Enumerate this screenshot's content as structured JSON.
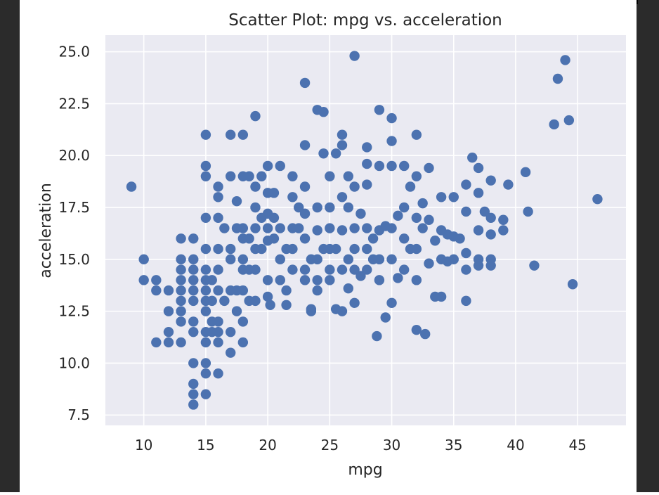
{
  "chart_data": {
    "type": "scatter",
    "title": "Scatter Plot: mpg vs. acceleration",
    "xlabel": "mpg",
    "ylabel": "acceleration",
    "xlim": [
      6.9,
      48.9
    ],
    "ylim": [
      7.0,
      25.8
    ],
    "xticks": [
      "10",
      "15",
      "20",
      "25",
      "30",
      "35",
      "40",
      "45"
    ],
    "yticks": [
      "7.5",
      "10.0",
      "12.5",
      "15.0",
      "17.5",
      "20.0",
      "22.5",
      "25.0"
    ],
    "grid": true,
    "legend": "none",
    "marker_color": "#4c72b0",
    "plot_background": "#eaeaf2",
    "points": [
      [
        9,
        18.5
      ],
      [
        10,
        15
      ],
      [
        10,
        14
      ],
      [
        11,
        14
      ],
      [
        11,
        13.5
      ],
      [
        11,
        11
      ],
      [
        12,
        13.5
      ],
      [
        12,
        12.5
      ],
      [
        12,
        11.5
      ],
      [
        12,
        11
      ],
      [
        13,
        16
      ],
      [
        13,
        15
      ],
      [
        13,
        14.5
      ],
      [
        13,
        14
      ],
      [
        13,
        13.5
      ],
      [
        13,
        13
      ],
      [
        13,
        12.5
      ],
      [
        13,
        12
      ],
      [
        13,
        11
      ],
      [
        14,
        16
      ],
      [
        14,
        15
      ],
      [
        14,
        14.5
      ],
      [
        14,
        14
      ],
      [
        14,
        13.5
      ],
      [
        14,
        13
      ],
      [
        14,
        12
      ],
      [
        14,
        11.5
      ],
      [
        14,
        10
      ],
      [
        14,
        9
      ],
      [
        14,
        8.5
      ],
      [
        14,
        8
      ],
      [
        15,
        21
      ],
      [
        15,
        19.5
      ],
      [
        15,
        19
      ],
      [
        15,
        17
      ],
      [
        15,
        15.5
      ],
      [
        15,
        14.5
      ],
      [
        15,
        14
      ],
      [
        15,
        13.5
      ],
      [
        15,
        13
      ],
      [
        15,
        12.5
      ],
      [
        15,
        11.5
      ],
      [
        15,
        11
      ],
      [
        15,
        10
      ],
      [
        15,
        9.5
      ],
      [
        15,
        8.5
      ],
      [
        15.5,
        14
      ],
      [
        15.5,
        13
      ],
      [
        15.5,
        12
      ],
      [
        15.5,
        11.5
      ],
      [
        16,
        18.5
      ],
      [
        16,
        18
      ],
      [
        16,
        17
      ],
      [
        16,
        15.5
      ],
      [
        16,
        14.5
      ],
      [
        16,
        13.5
      ],
      [
        16,
        12
      ],
      [
        16,
        11.5
      ],
      [
        16,
        11
      ],
      [
        16,
        9.5
      ],
      [
        16.5,
        16.5
      ],
      [
        16.5,
        13
      ],
      [
        17,
        21
      ],
      [
        17,
        19
      ],
      [
        17,
        15.5
      ],
      [
        17,
        15
      ],
      [
        17,
        13.5
      ],
      [
        17,
        11.5
      ],
      [
        17,
        10.5
      ],
      [
        17.5,
        17.8
      ],
      [
        17.5,
        16.5
      ],
      [
        17.5,
        13.5
      ],
      [
        17.5,
        12.5
      ],
      [
        18,
        21
      ],
      [
        18,
        19
      ],
      [
        18,
        16.5
      ],
      [
        18,
        16
      ],
      [
        18,
        15
      ],
      [
        18,
        14.5
      ],
      [
        18,
        13.5
      ],
      [
        18,
        12
      ],
      [
        18,
        11
      ],
      [
        18.5,
        19
      ],
      [
        18.5,
        16
      ],
      [
        18.5,
        14.5
      ],
      [
        18.5,
        13
      ],
      [
        19,
        21.9
      ],
      [
        19,
        18.5
      ],
      [
        19,
        17.5
      ],
      [
        19,
        16.5
      ],
      [
        19,
        15.5
      ],
      [
        19,
        14.5
      ],
      [
        19,
        13
      ],
      [
        19.5,
        19
      ],
      [
        19.5,
        17
      ],
      [
        19.5,
        15.5
      ],
      [
        20,
        19.5
      ],
      [
        20,
        18.2
      ],
      [
        20,
        17.2
      ],
      [
        20,
        16.5
      ],
      [
        20,
        15.9
      ],
      [
        20,
        14
      ],
      [
        20,
        13.2
      ],
      [
        20.2,
        12.8
      ],
      [
        20.5,
        18.2
      ],
      [
        20.5,
        17
      ],
      [
        20.5,
        16
      ],
      [
        21,
        19.5
      ],
      [
        21,
        16.5
      ],
      [
        21,
        15
      ],
      [
        21,
        14
      ],
      [
        21.5,
        15.5
      ],
      [
        21.5,
        13.5
      ],
      [
        21.5,
        12.8
      ],
      [
        22,
        19
      ],
      [
        22,
        18
      ],
      [
        22,
        16.5
      ],
      [
        22,
        15.5
      ],
      [
        22,
        14.5
      ],
      [
        22.5,
        17.5
      ],
      [
        22.5,
        16.5
      ],
      [
        23,
        23.5
      ],
      [
        23,
        20.5
      ],
      [
        23,
        18.5
      ],
      [
        23,
        17.2
      ],
      [
        23,
        16
      ],
      [
        23,
        14.5
      ],
      [
        23,
        14
      ],
      [
        23.5,
        15
      ],
      [
        23.5,
        12.6
      ],
      [
        23.5,
        12.5
      ],
      [
        24,
        22.2
      ],
      [
        24,
        17.5
      ],
      [
        24,
        16.4
      ],
      [
        24,
        15
      ],
      [
        24,
        14
      ],
      [
        24,
        13.5
      ],
      [
        24.5,
        22.1
      ],
      [
        24.5,
        20.1
      ],
      [
        24.5,
        15.5
      ],
      [
        25,
        19
      ],
      [
        25,
        17.5
      ],
      [
        25,
        16.5
      ],
      [
        25,
        15.5
      ],
      [
        25,
        14.5
      ],
      [
        25,
        14
      ],
      [
        25.5,
        20.1
      ],
      [
        25.5,
        15.5
      ],
      [
        25.5,
        12.6
      ],
      [
        26,
        21
      ],
      [
        26,
        20.5
      ],
      [
        26,
        18
      ],
      [
        26,
        16.4
      ],
      [
        26,
        14.5
      ],
      [
        26,
        12.5
      ],
      [
        26.5,
        19
      ],
      [
        26.5,
        17.5
      ],
      [
        26.5,
        15
      ],
      [
        26.5,
        13.6
      ],
      [
        27,
        24.8
      ],
      [
        27,
        18.5
      ],
      [
        27,
        16.5
      ],
      [
        27,
        15.5
      ],
      [
        27,
        14.5
      ],
      [
        27,
        12.9
      ],
      [
        27.5,
        17.2
      ],
      [
        27.5,
        14.2
      ],
      [
        28,
        20.4
      ],
      [
        28,
        19.6
      ],
      [
        28,
        18.6
      ],
      [
        28,
        16.5
      ],
      [
        28,
        15.5
      ],
      [
        28,
        14.5
      ],
      [
        28.5,
        15
      ],
      [
        28.5,
        16
      ],
      [
        28.8,
        11.3
      ],
      [
        29,
        22.2
      ],
      [
        29,
        19.5
      ],
      [
        29,
        16.4
      ],
      [
        29,
        15
      ],
      [
        29,
        14
      ],
      [
        29.5,
        16.6
      ],
      [
        29.5,
        12.2
      ],
      [
        30,
        21.8
      ],
      [
        30,
        20.7
      ],
      [
        30,
        19.5
      ],
      [
        30,
        16.5
      ],
      [
        30,
        15
      ],
      [
        30,
        12.9
      ],
      [
        30.5,
        17.1
      ],
      [
        30.5,
        14.1
      ],
      [
        31,
        19.5
      ],
      [
        31,
        17.5
      ],
      [
        31,
        16
      ],
      [
        31,
        14.5
      ],
      [
        31.5,
        18.5
      ],
      [
        31.5,
        15.5
      ],
      [
        32,
        21
      ],
      [
        32,
        19
      ],
      [
        32,
        17
      ],
      [
        32,
        15.5
      ],
      [
        32,
        14
      ],
      [
        32,
        11.6
      ],
      [
        32.5,
        17.7
      ],
      [
        32.5,
        16.5
      ],
      [
        32.7,
        11.4
      ],
      [
        33,
        19.4
      ],
      [
        33,
        16.9
      ],
      [
        33,
        14.8
      ],
      [
        33.5,
        15.9
      ],
      [
        33.5,
        13.2
      ],
      [
        34,
        18
      ],
      [
        34,
        16.4
      ],
      [
        34,
        15
      ],
      [
        34,
        13.2
      ],
      [
        34.5,
        16.2
      ],
      [
        34.5,
        14.9
      ],
      [
        35,
        18
      ],
      [
        35,
        16.1
      ],
      [
        35,
        15
      ],
      [
        35.5,
        16
      ],
      [
        36,
        18.6
      ],
      [
        36,
        17.3
      ],
      [
        36,
        15.3
      ],
      [
        36,
        14.5
      ],
      [
        36,
        13
      ],
      [
        36.5,
        19.9
      ],
      [
        37,
        19.4
      ],
      [
        37,
        18.2
      ],
      [
        37,
        16.4
      ],
      [
        37,
        15
      ],
      [
        37,
        14.7
      ],
      [
        37.5,
        17.3
      ],
      [
        38,
        18.8
      ],
      [
        38,
        17
      ],
      [
        38,
        16.2
      ],
      [
        38,
        15
      ],
      [
        38,
        14.7
      ],
      [
        39,
        16.9
      ],
      [
        39,
        16.4
      ],
      [
        39.4,
        18.6
      ],
      [
        40.8,
        19.2
      ],
      [
        41,
        17.3
      ],
      [
        41.5,
        14.7
      ],
      [
        43.1,
        21.5
      ],
      [
        43.4,
        23.7
      ],
      [
        44,
        24.6
      ],
      [
        44.3,
        21.7
      ],
      [
        44.6,
        13.8
      ],
      [
        46.6,
        17.9
      ]
    ]
  }
}
